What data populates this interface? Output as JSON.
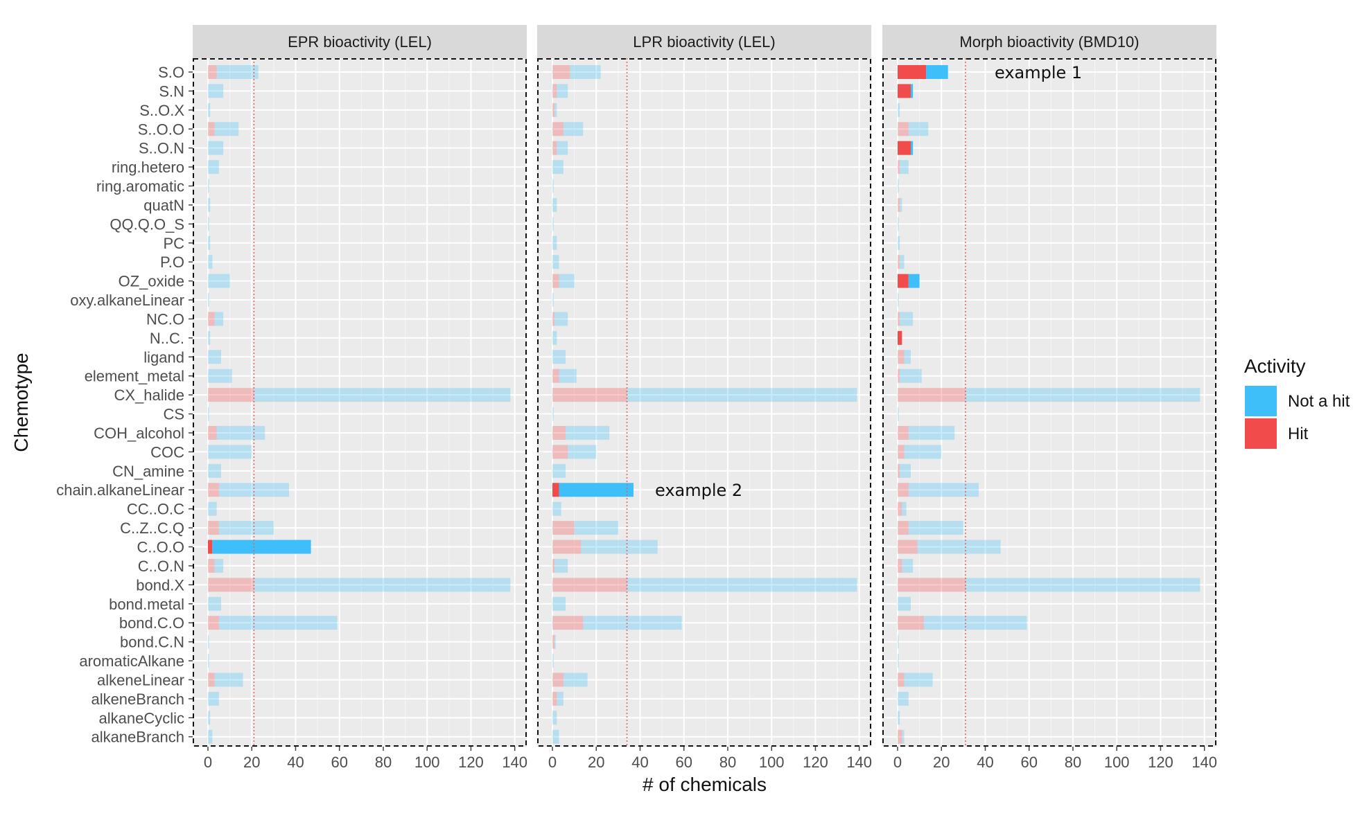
{
  "chart_data": {
    "type": "bar",
    "orientation": "horizontal",
    "stacked": true,
    "ylabel": "Chemotype",
    "xlabel": "# of chemicals",
    "xlim": [
      0,
      140
    ],
    "xticks": [
      0,
      20,
      40,
      60,
      80,
      100,
      120,
      140
    ],
    "grid": true,
    "legend": {
      "title": "Activity",
      "position": "right",
      "entries": [
        {
          "label": "Not a hit",
          "color": "#3FBFFA"
        },
        {
          "label": "Hit",
          "color": "#F24B4B"
        }
      ]
    },
    "categories": [
      "S.O",
      "S.N",
      "S..O.X",
      "S..O.O",
      "S..O.N",
      "ring.hetero",
      "ring.aromatic",
      "quatN",
      "QQ.Q.O_S",
      "PC",
      "P.O",
      "OZ_oxide",
      "oxy.alkaneLinear",
      "NC.O",
      "N..C.",
      "ligand",
      "element_metal",
      "CX_halide",
      "CS",
      "COH_alcohol",
      "COC",
      "CN_amine",
      "chain.alkaneLinear",
      "CC..O.C",
      "C..Z..C.Q",
      "C..O.O",
      "C..O.N",
      "bond.X",
      "bond.metal",
      "bond.C.O",
      "bond.C.N",
      "aromaticAlkane",
      "alkeneLinear",
      "alkeneBranch",
      "alkaneCyclic",
      "alkaneBranch"
    ],
    "panels": [
      {
        "title": "EPR bioactivity (LEL)",
        "reference_line": 21,
        "highlight": "C..O.O",
        "hit": [
          4,
          0,
          0,
          3,
          0,
          0,
          0,
          0,
          0,
          0,
          0,
          0,
          0,
          3,
          0,
          0,
          0,
          21,
          0,
          4,
          0,
          0,
          5,
          0,
          5,
          2,
          3,
          21,
          0,
          5,
          0,
          0,
          3,
          0,
          0,
          0
        ],
        "not_hit": [
          19,
          7,
          1,
          11,
          7,
          5,
          0.5,
          1,
          0.5,
          1,
          2,
          10,
          0.5,
          4,
          1,
          6,
          11,
          117,
          0.5,
          22,
          20,
          6,
          32,
          4,
          25,
          45,
          4,
          117,
          6,
          54,
          0.5,
          0.5,
          13,
          5,
          1,
          2
        ]
      },
      {
        "title": "LPR bioactivity (LEL)",
        "reference_line": 34,
        "highlight": "chain.alkaneLinear",
        "hit": [
          8,
          2,
          1,
          5,
          2,
          0,
          0,
          0,
          0,
          0,
          0,
          3,
          0,
          1,
          0,
          0,
          3,
          34,
          0,
          6,
          7,
          0,
          3,
          0,
          10,
          13,
          1,
          34,
          0,
          14,
          1,
          0,
          5,
          2,
          0,
          0
        ],
        "not_hit": [
          14,
          5,
          1,
          9,
          5,
          5,
          0.5,
          2,
          0.5,
          2,
          3,
          7,
          0.5,
          6,
          2,
          6,
          8,
          105,
          0.5,
          20,
          13,
          6,
          34,
          4,
          20,
          35,
          6,
          105,
          6,
          45,
          0.5,
          0.5,
          11,
          3,
          2,
          3
        ]
      },
      {
        "title": "Morph bioactivity (BMD10)",
        "reference_line": 31,
        "highlight": [
          "S.O",
          "S.N",
          "S..O.N",
          "OZ_oxide",
          "N..C."
        ],
        "hit": [
          13,
          6,
          0,
          5,
          6,
          1,
          0,
          1,
          0,
          0,
          1,
          5,
          0,
          1,
          2,
          3,
          1,
          31,
          0,
          5,
          3,
          1,
          5,
          2,
          5,
          9,
          2,
          31,
          0,
          12,
          0,
          0,
          3,
          0,
          0,
          2
        ],
        "not_hit": [
          10,
          1,
          1,
          9,
          1,
          4,
          0.5,
          1,
          0.5,
          1,
          2,
          5,
          0.5,
          6,
          0,
          3,
          10,
          107,
          0.5,
          21,
          17,
          5,
          32,
          2,
          25,
          38,
          5,
          107,
          6,
          47,
          0.5,
          0.5,
          13,
          5,
          1,
          1
        ]
      }
    ],
    "annotations": [
      {
        "panel": 2,
        "category": "S.O",
        "text": "example 1"
      },
      {
        "panel": 1,
        "category": "chain.alkaneLinear",
        "text": "example 2"
      }
    ]
  }
}
